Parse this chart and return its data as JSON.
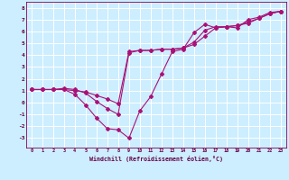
{
  "title": "",
  "xlabel": "Windchill (Refroidissement éolien,°C)",
  "xlim": [
    -0.5,
    23.5
  ],
  "ylim": [
    -3.8,
    8.5
  ],
  "xticks": [
    0,
    1,
    2,
    3,
    4,
    5,
    6,
    7,
    8,
    9,
    10,
    11,
    12,
    13,
    14,
    15,
    16,
    17,
    18,
    19,
    20,
    21,
    22,
    23
  ],
  "yticks": [
    -3,
    -2,
    -1,
    0,
    1,
    2,
    3,
    4,
    5,
    6,
    7,
    8
  ],
  "bg_color": "#cceeff",
  "grid_color": "#ffffff",
  "line_color": "#aa1177",
  "line1_x": [
    0,
    1,
    2,
    3,
    4,
    5,
    6,
    7,
    8,
    9,
    10,
    11,
    12,
    13,
    14,
    15,
    16,
    17,
    18,
    19,
    20,
    21,
    22,
    23
  ],
  "line1_y": [
    1.1,
    1.1,
    1.1,
    1.1,
    0.7,
    -0.2,
    -1.3,
    -2.2,
    -2.3,
    -3.0,
    -0.7,
    0.5,
    2.4,
    4.3,
    4.5,
    5.9,
    6.6,
    6.3,
    6.4,
    6.3,
    7.0,
    7.2,
    7.6,
    7.7
  ],
  "line2_x": [
    0,
    1,
    2,
    3,
    4,
    5,
    6,
    7,
    8,
    9,
    10,
    11,
    12,
    13,
    14,
    15,
    16,
    17,
    18,
    19,
    20,
    21,
    22,
    23
  ],
  "line2_y": [
    1.1,
    1.1,
    1.1,
    1.2,
    1.1,
    0.8,
    0.1,
    -0.5,
    -1.0,
    4.2,
    4.4,
    4.4,
    4.5,
    4.5,
    4.6,
    5.1,
    6.1,
    6.4,
    6.4,
    6.5,
    6.7,
    7.1,
    7.5,
    7.7
  ],
  "line3_x": [
    0,
    1,
    2,
    3,
    4,
    5,
    6,
    7,
    8,
    9,
    10,
    11,
    12,
    13,
    14,
    15,
    16,
    17,
    18,
    19,
    20,
    21,
    22,
    23
  ],
  "line3_y": [
    1.1,
    1.1,
    1.1,
    1.1,
    1.0,
    0.9,
    0.6,
    0.3,
    -0.1,
    4.3,
    4.4,
    4.4,
    4.5,
    4.5,
    4.6,
    4.9,
    5.6,
    6.3,
    6.4,
    6.5,
    6.8,
    7.1,
    7.5,
    7.7
  ]
}
